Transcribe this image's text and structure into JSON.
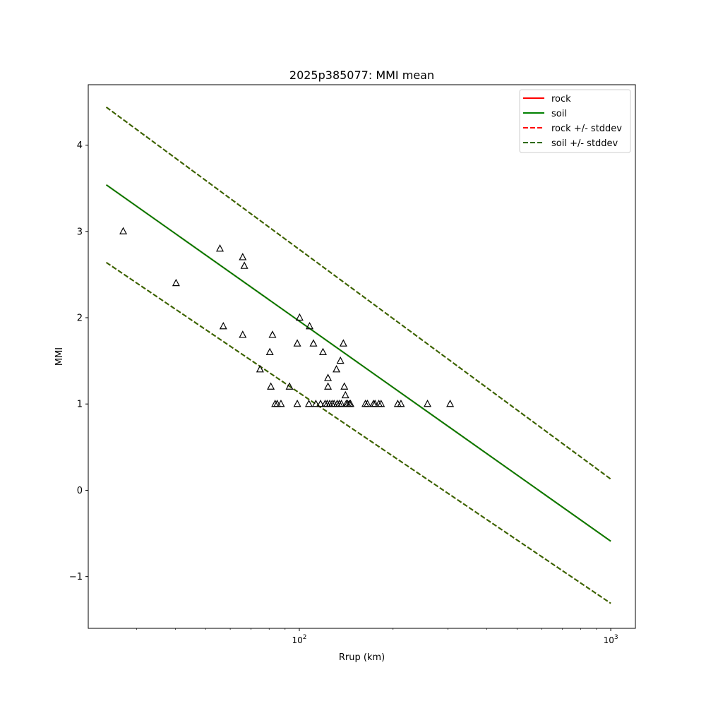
{
  "chart_data": {
    "type": "scatter",
    "title": "2025p385077: MMI mean",
    "xlabel": "Rrup (km)",
    "ylabel": "MMI",
    "xscale": "log",
    "xlim": [
      21,
      1200
    ],
    "ylim": [
      -1.6,
      4.7
    ],
    "x_ticks": [
      {
        "value": 100,
        "base": "10",
        "exp": "2"
      },
      {
        "value": 1000,
        "base": "10",
        "exp": "3"
      }
    ],
    "y_ticks": [
      {
        "value": 4,
        "label": "4"
      },
      {
        "value": 3,
        "label": "3"
      },
      {
        "value": 2,
        "label": "2"
      },
      {
        "value": 1,
        "label": "1"
      },
      {
        "value": 0,
        "label": "0"
      },
      {
        "value": -1,
        "label": "−1"
      }
    ],
    "grid": false,
    "legend_position": "top-right",
    "lines": [
      {
        "name": "rock",
        "color": "#ff0000",
        "dash": false,
        "points": [
          [
            24,
            3.54
          ],
          [
            1000,
            -0.59
          ]
        ]
      },
      {
        "name": "soil",
        "color": "#008000",
        "dash": false,
        "points": [
          [
            24,
            3.54
          ],
          [
            1000,
            -0.59
          ]
        ]
      },
      {
        "name": "rock +/- stddev",
        "color": "#ff0000",
        "dash": true,
        "points": [
          [
            24,
            4.44
          ],
          [
            1000,
            0.13
          ]
        ]
      },
      {
        "name": "rock +/- stddev",
        "color": "#ff0000",
        "dash": true,
        "points": [
          [
            24,
            2.64
          ],
          [
            1000,
            -1.31
          ]
        ]
      },
      {
        "name": "soil +/- stddev",
        "color": "#2e6b00",
        "dash": true,
        "points": [
          [
            24,
            4.44
          ],
          [
            1000,
            0.13
          ]
        ]
      },
      {
        "name": "soil +/- stddev",
        "color": "#2e6b00",
        "dash": true,
        "points": [
          [
            24,
            2.64
          ],
          [
            1000,
            -1.31
          ]
        ]
      }
    ],
    "legend": [
      {
        "label": "rock",
        "color": "#ff0000",
        "dash": false
      },
      {
        "label": "soil",
        "color": "#008000",
        "dash": false
      },
      {
        "label": "rock +/- stddev",
        "color": "#ff0000",
        "dash": true
      },
      {
        "label": "soil +/- stddev",
        "color": "#2e6b00",
        "dash": true
      }
    ],
    "observations": [
      [
        27.2,
        3.0
      ],
      [
        40.2,
        2.4
      ],
      [
        55.6,
        2.8
      ],
      [
        57.0,
        1.9
      ],
      [
        65.8,
        2.7
      ],
      [
        66.6,
        2.6
      ],
      [
        65.8,
        1.8
      ],
      [
        74.8,
        1.4
      ],
      [
        80.4,
        1.6
      ],
      [
        81.0,
        1.2
      ],
      [
        82.0,
        1.8
      ],
      [
        83.6,
        1.0
      ],
      [
        84.9,
        1.0
      ],
      [
        87.3,
        1.0
      ],
      [
        93.0,
        1.2
      ],
      [
        98.5,
        1.7
      ],
      [
        98.5,
        1.0
      ],
      [
        100.2,
        2.0
      ],
      [
        107.3,
        1.0
      ],
      [
        107.9,
        1.9
      ],
      [
        111.0,
        1.7
      ],
      [
        113.0,
        1.0
      ],
      [
        117.0,
        1.0
      ],
      [
        119.1,
        1.6
      ],
      [
        121.0,
        1.0
      ],
      [
        122.9,
        1.0
      ],
      [
        123.6,
        1.3
      ],
      [
        123.6,
        1.2
      ],
      [
        125.2,
        1.0
      ],
      [
        127.4,
        1.0
      ],
      [
        129.3,
        1.0
      ],
      [
        131.6,
        1.4
      ],
      [
        132.3,
        1.0
      ],
      [
        134.4,
        1.0
      ],
      [
        135.5,
        1.5
      ],
      [
        136.5,
        1.0
      ],
      [
        138.5,
        1.7
      ],
      [
        139.5,
        1.2
      ],
      [
        140.6,
        1.1
      ],
      [
        141.5,
        1.0
      ],
      [
        142.9,
        1.0
      ],
      [
        144.8,
        1.0
      ],
      [
        146.0,
        1.0
      ],
      [
        163.0,
        1.0
      ],
      [
        165.5,
        1.0
      ],
      [
        173.0,
        1.0
      ],
      [
        175.0,
        1.0
      ],
      [
        180.0,
        1.0
      ],
      [
        183.0,
        1.0
      ],
      [
        207.0,
        1.0
      ],
      [
        212.0,
        1.0
      ],
      [
        258.0,
        1.0
      ],
      [
        305.0,
        1.0
      ]
    ],
    "marker": "triangle-open",
    "marker_color": "#000000"
  }
}
